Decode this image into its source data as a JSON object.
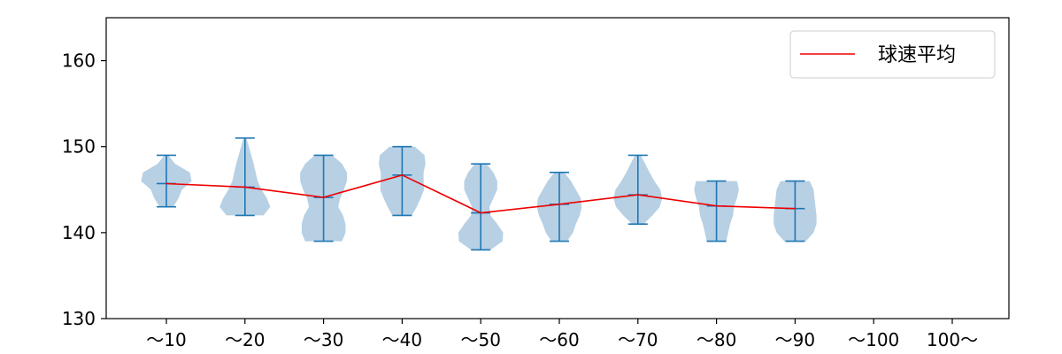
{
  "chart_data": {
    "type": "violin",
    "categories": [
      "～10",
      "～20",
      "～30",
      "～40",
      "～50",
      "～60",
      "～70",
      "～80",
      "～90",
      "～100",
      "100～"
    ],
    "y_ticks": [
      "130",
      "140",
      "150",
      "160"
    ],
    "ylim": [
      130,
      165
    ],
    "grid": false,
    "legend_position": "top-right",
    "series": [
      {
        "name": "球速平均",
        "type": "line",
        "color": "#ee0000",
        "values": [
          145.7,
          145.3,
          144.1,
          146.7,
          142.3,
          143.3,
          144.4,
          143.1,
          142.8,
          null,
          null
        ]
      }
    ],
    "violins": [
      {
        "category": "～10",
        "min": 143,
        "max": 149,
        "mean": 145.7,
        "profile": [
          [
            143,
            1.4
          ],
          [
            144,
            2.5
          ],
          [
            145,
            3.2
          ],
          [
            146,
            5.2
          ],
          [
            147,
            4.8
          ],
          [
            148,
            1.8
          ],
          [
            149,
            0.4
          ]
        ]
      },
      {
        "category": "～20",
        "min": 142,
        "max": 151,
        "mean": 145.3,
        "profile": [
          [
            142,
            3.8
          ],
          [
            143,
            5.2
          ],
          [
            144,
            4.5
          ],
          [
            145,
            3.4
          ],
          [
            146,
            2.6
          ],
          [
            147,
            2.2
          ],
          [
            148,
            1.8
          ],
          [
            149,
            1.3
          ],
          [
            150,
            0.8
          ],
          [
            151,
            0.3
          ]
        ]
      },
      {
        "category": "～30",
        "min": 139,
        "max": 149,
        "mean": 144.1,
        "profile": [
          [
            139,
            3.8
          ],
          [
            140,
            4.5
          ],
          [
            141,
            4.5
          ],
          [
            142,
            4.0
          ],
          [
            143,
            3.0
          ],
          [
            144,
            3.4
          ],
          [
            145,
            4.2
          ],
          [
            146,
            4.8
          ],
          [
            147,
            4.8
          ],
          [
            148,
            3.8
          ],
          [
            149,
            1.8
          ]
        ]
      },
      {
        "category": "～40",
        "min": 142,
        "max": 150,
        "mean": 146.7,
        "profile": [
          [
            142,
            2.0
          ],
          [
            143,
            3.0
          ],
          [
            144,
            3.8
          ],
          [
            145,
            4.5
          ],
          [
            146,
            4.4
          ],
          [
            147,
            4.4
          ],
          [
            148,
            4.8
          ],
          [
            149,
            4.6
          ],
          [
            150,
            2.6
          ]
        ]
      },
      {
        "category": "～50",
        "min": 138,
        "max": 148,
        "mean": 142.3,
        "profile": [
          [
            138,
            2.0
          ],
          [
            139,
            4.5
          ],
          [
            140,
            4.6
          ],
          [
            141,
            3.4
          ],
          [
            142,
            2.0
          ],
          [
            143,
            1.8
          ],
          [
            144,
            2.6
          ],
          [
            145,
            3.4
          ],
          [
            146,
            3.4
          ],
          [
            147,
            2.6
          ],
          [
            148,
            1.2
          ]
        ]
      },
      {
        "category": "～60",
        "min": 139,
        "max": 147,
        "mean": 143.3,
        "profile": [
          [
            139,
            1.6
          ],
          [
            140,
            2.8
          ],
          [
            141,
            3.4
          ],
          [
            142,
            4.2
          ],
          [
            143,
            4.6
          ],
          [
            144,
            4.4
          ],
          [
            145,
            3.4
          ],
          [
            146,
            2.4
          ],
          [
            147,
            1.0
          ]
        ]
      },
      {
        "category": "～70",
        "min": 141,
        "max": 149,
        "mean": 144.4,
        "profile": [
          [
            141,
            1.2
          ],
          [
            142,
            3.0
          ],
          [
            143,
            4.5
          ],
          [
            144,
            5.0
          ],
          [
            145,
            4.6
          ],
          [
            146,
            3.4
          ],
          [
            147,
            2.4
          ],
          [
            148,
            1.5
          ],
          [
            149,
            0.6
          ]
        ]
      },
      {
        "category": "～80",
        "min": 139,
        "max": 146,
        "mean": 143.1,
        "profile": [
          [
            139,
            2.0
          ],
          [
            140,
            2.4
          ],
          [
            141,
            2.8
          ],
          [
            142,
            3.4
          ],
          [
            143,
            3.6
          ],
          [
            144,
            4.2
          ],
          [
            145,
            4.6
          ],
          [
            146,
            4.2
          ]
        ]
      },
      {
        "category": "～90",
        "min": 139,
        "max": 146,
        "mean": 142.8,
        "profile": [
          [
            139,
            2.2
          ],
          [
            140,
            3.8
          ],
          [
            141,
            4.4
          ],
          [
            142,
            4.4
          ],
          [
            143,
            4.2
          ],
          [
            144,
            4.0
          ],
          [
            145,
            3.8
          ],
          [
            146,
            3.0
          ]
        ]
      }
    ],
    "colors": {
      "violin_fill": "#b3cde3",
      "violin_stroke": "#1f77b4",
      "mean_line": "#ee0000",
      "axes": "#000000"
    }
  }
}
